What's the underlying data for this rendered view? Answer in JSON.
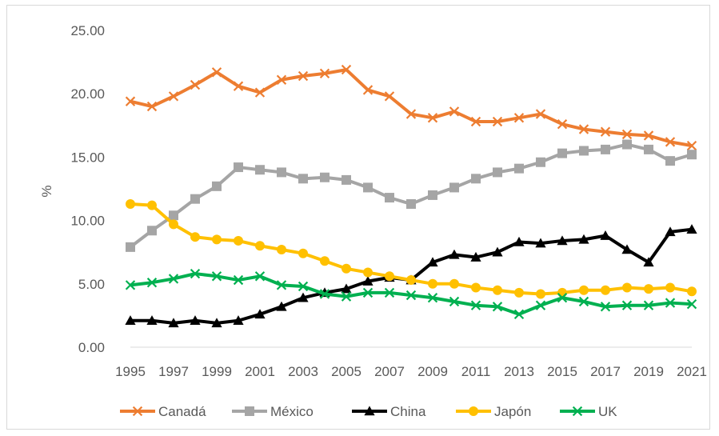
{
  "chart_data": {
    "type": "line",
    "title": "",
    "xlabel": "",
    "ylabel": "%",
    "ylim": [
      0,
      25
    ],
    "y_ticks": [
      "0.00",
      "5.00",
      "10.00",
      "15.00",
      "20.00",
      "25.00"
    ],
    "x": [
      1995,
      1996,
      1997,
      1998,
      1999,
      2000,
      2001,
      2002,
      2003,
      2004,
      2005,
      2006,
      2007,
      2008,
      2009,
      2010,
      2011,
      2012,
      2013,
      2014,
      2015,
      2016,
      2017,
      2018,
      2019,
      2020,
      2021
    ],
    "x_tick_labels": [
      "1995",
      "1997",
      "1999",
      "2001",
      "2003",
      "2005",
      "2007",
      "2009",
      "2011",
      "2013",
      "2015",
      "2017",
      "2019",
      "2021"
    ],
    "grid": false,
    "legend_position": "bottom",
    "series": [
      {
        "name": "Canadá",
        "color": "#ED7D31",
        "marker": "x",
        "values": [
          19.4,
          19.0,
          19.8,
          20.7,
          21.7,
          20.6,
          20.1,
          21.1,
          21.4,
          21.6,
          21.9,
          20.3,
          19.8,
          18.4,
          18.1,
          18.6,
          17.8,
          17.8,
          18.1,
          18.4,
          17.6,
          17.2,
          17.0,
          16.8,
          16.7,
          16.2,
          15.9
        ]
      },
      {
        "name": "México",
        "color": "#A5A5A5",
        "marker": "square",
        "values": [
          7.9,
          9.2,
          10.4,
          11.7,
          12.7,
          14.2,
          14.0,
          13.8,
          13.3,
          13.4,
          13.2,
          12.6,
          11.8,
          11.3,
          12.0,
          12.6,
          13.3,
          13.8,
          14.1,
          14.6,
          15.3,
          15.5,
          15.6,
          16.0,
          15.6,
          14.7,
          15.2
        ]
      },
      {
        "name": "China",
        "color": "#000000",
        "marker": "triangle",
        "values": [
          2.1,
          2.1,
          1.9,
          2.1,
          1.9,
          2.1,
          2.6,
          3.2,
          3.9,
          4.3,
          4.6,
          5.2,
          5.5,
          5.3,
          6.7,
          7.3,
          7.1,
          7.5,
          8.3,
          8.2,
          8.4,
          8.5,
          8.8,
          7.7,
          6.7,
          9.1,
          9.3
        ]
      },
      {
        "name": "Japón",
        "color": "#FFC000",
        "marker": "circle",
        "values": [
          11.3,
          11.2,
          9.7,
          8.7,
          8.5,
          8.4,
          8.0,
          7.7,
          7.4,
          6.8,
          6.2,
          5.9,
          5.6,
          5.3,
          5.0,
          5.0,
          4.7,
          4.5,
          4.3,
          4.2,
          4.3,
          4.5,
          4.5,
          4.7,
          4.6,
          4.7,
          4.4
        ]
      },
      {
        "name": "UK",
        "color": "#00B050",
        "marker": "x",
        "values": [
          4.9,
          5.1,
          5.4,
          5.8,
          5.6,
          5.3,
          5.6,
          4.9,
          4.8,
          4.2,
          4.0,
          4.3,
          4.3,
          4.1,
          3.9,
          3.6,
          3.3,
          3.2,
          2.6,
          3.3,
          3.9,
          3.6,
          3.2,
          3.3,
          3.3,
          3.5,
          3.4
        ]
      }
    ]
  }
}
